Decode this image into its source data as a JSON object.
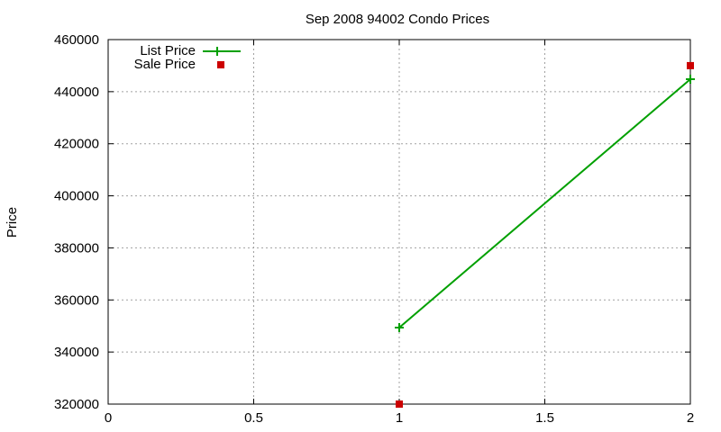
{
  "chart_data": {
    "type": "line",
    "title": "Sep 2008 94002 Condo Prices",
    "xlabel": "",
    "ylabel": "Price",
    "xlim": [
      0,
      2
    ],
    "ylim": [
      320000,
      460000
    ],
    "x_ticks": [
      "0",
      "0.5",
      "1",
      "1.5",
      "2"
    ],
    "y_ticks": [
      "320000",
      "340000",
      "360000",
      "380000",
      "400000",
      "420000",
      "440000",
      "460000"
    ],
    "grid": true,
    "legend_position": "top-left",
    "series": [
      {
        "name": "List Price",
        "style": "linespoints",
        "marker": "plus",
        "color": "#00a000",
        "x": [
          1,
          2
        ],
        "values": [
          349400,
          444800
        ]
      },
      {
        "name": "Sale Price",
        "style": "points",
        "marker": "square",
        "color": "#c00000",
        "x": [
          1,
          2
        ],
        "values": [
          320000,
          450000
        ]
      }
    ]
  },
  "colors": {
    "list": "#00a000",
    "sale": "#cc0000",
    "grid": "#a0a0a0",
    "axis": "#000000"
  }
}
